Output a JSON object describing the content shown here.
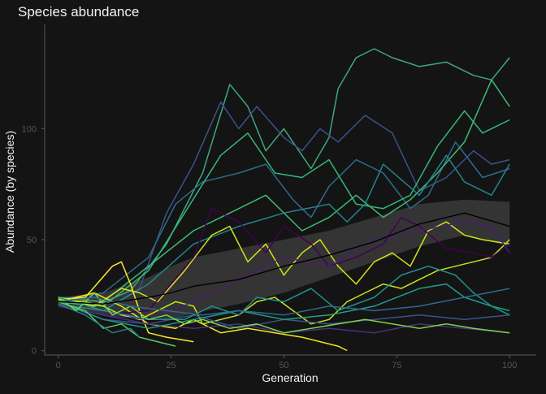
{
  "chart_data": {
    "type": "line",
    "title": "Species abundance",
    "xlabel": "Generation",
    "ylabel": "Abundance (by species)",
    "xlim": [
      -3,
      105
    ],
    "ylim": [
      -2,
      147
    ],
    "x_ticks": [
      0,
      25,
      50,
      75,
      100
    ],
    "x_tick_labels": [
      "0",
      "25",
      "50",
      "75",
      "100"
    ],
    "y_ticks": [
      0,
      50,
      100
    ],
    "y_tick_labels": [
      "0",
      "50",
      "100"
    ],
    "grid": false,
    "legend": "none",
    "colors": {
      "background": "#141414",
      "text": "#f2f2f2",
      "tick_text": "#555555",
      "axis": "#4d4d4d",
      "ribbon": "#3a3a3a",
      "mean_line": "#000000"
    },
    "mean": {
      "x": [
        0,
        10,
        20,
        25,
        30,
        40,
        50,
        60,
        70,
        80,
        90,
        100
      ],
      "y": [
        22,
        21,
        24,
        26,
        29,
        32,
        38,
        43,
        49,
        57,
        62,
        56
      ],
      "lower": [
        20,
        16,
        15,
        14,
        17,
        21,
        26,
        33,
        40,
        47,
        52,
        47
      ],
      "upper": [
        24,
        26,
        33,
        38,
        42,
        46,
        50,
        54,
        60,
        66,
        68,
        67
      ]
    },
    "series": [
      {
        "color": "#3fa77e",
        "x": [
          0,
          8,
          16,
          24,
          32,
          38,
          42,
          46,
          50,
          56,
          60,
          62,
          66,
          70,
          74,
          80,
          86,
          92,
          96,
          100
        ],
        "y": [
          22,
          20,
          27,
          48,
          80,
          120,
          110,
          90,
          100,
          82,
          96,
          118,
          132,
          136,
          132,
          128,
          130,
          124,
          122,
          132
        ]
      },
      {
        "color": "#3b528b",
        "x": [
          0,
          10,
          18,
          24,
          30,
          36,
          40,
          44,
          50,
          54,
          58,
          62,
          68,
          74,
          80,
          86,
          92,
          96,
          100
        ],
        "y": [
          21,
          18,
          28,
          62,
          84,
          112,
          100,
          110,
          96,
          90,
          100,
          94,
          106,
          98,
          72,
          78,
          90,
          84,
          86
        ]
      },
      {
        "color": "#2f6b8e",
        "x": [
          0,
          10,
          20,
          26,
          32,
          40,
          46,
          52,
          56,
          60,
          66,
          72,
          78,
          82,
          88,
          94,
          100
        ],
        "y": [
          23,
          26,
          42,
          66,
          76,
          80,
          84,
          68,
          60,
          74,
          86,
          80,
          64,
          70,
          94,
          78,
          82
        ]
      },
      {
        "color": "#35b779",
        "x": [
          0,
          10,
          20,
          28,
          36,
          42,
          48,
          54,
          60,
          66,
          72,
          78,
          84,
          90,
          94,
          100
        ],
        "y": [
          22,
          20,
          36,
          62,
          88,
          98,
          80,
          78,
          86,
          66,
          64,
          70,
          92,
          108,
          98,
          104
        ]
      },
      {
        "color": "#3cbc75",
        "x": [
          0,
          10,
          20,
          30,
          38,
          46,
          54,
          60,
          66,
          72,
          78,
          84,
          90,
          96,
          100
        ],
        "y": [
          24,
          22,
          38,
          54,
          62,
          70,
          54,
          60,
          70,
          60,
          68,
          80,
          94,
          122,
          110
        ]
      },
      {
        "color": "#25848e",
        "x": [
          0,
          10,
          20,
          30,
          40,
          50,
          60,
          64,
          68,
          72,
          80,
          86,
          90,
          96,
          100
        ],
        "y": [
          21,
          18,
          30,
          48,
          56,
          62,
          66,
          58,
          66,
          84,
          70,
          88,
          76,
          70,
          84
        ]
      },
      {
        "color": "#d2e21b",
        "x": [
          0,
          8,
          14,
          18,
          22,
          28,
          34,
          38,
          42,
          46,
          50,
          54,
          58,
          62,
          66,
          70,
          74,
          78,
          82,
          86,
          90,
          94,
          100
        ],
        "y": [
          24,
          20,
          28,
          26,
          22,
          36,
          52,
          56,
          40,
          48,
          34,
          44,
          50,
          38,
          30,
          40,
          44,
          38,
          54,
          58,
          52,
          50,
          48
        ]
      },
      {
        "color": "#fde725",
        "x": [
          0,
          6,
          12,
          14,
          16,
          18,
          20,
          24,
          30
        ],
        "y": [
          23,
          24,
          38,
          40,
          30,
          18,
          8,
          6,
          4
        ]
      },
      {
        "color": "#f0e51c",
        "x": [
          0,
          8,
          14,
          20,
          26,
          30,
          36,
          42,
          48,
          54,
          58,
          62,
          64
        ],
        "y": [
          22,
          26,
          20,
          12,
          10,
          14,
          8,
          10,
          8,
          6,
          4,
          2,
          0
        ]
      },
      {
        "color": "#c9e020",
        "x": [
          0,
          6,
          10,
          14,
          18,
          22,
          26,
          30,
          32,
          36,
          40,
          44,
          48,
          52,
          56,
          60,
          64,
          68,
          72,
          76,
          80,
          84,
          88,
          92,
          96,
          100
        ],
        "y": [
          23,
          22,
          20,
          16,
          14,
          18,
          22,
          20,
          12,
          14,
          16,
          22,
          24,
          18,
          12,
          14,
          22,
          26,
          30,
          28,
          32,
          36,
          38,
          40,
          42,
          50
        ]
      },
      {
        "color": "#440154",
        "x": [
          0,
          10,
          20,
          30,
          34,
          40,
          46,
          50,
          56,
          60,
          66,
          72,
          76,
          80,
          86,
          92,
          96,
          100
        ],
        "y": [
          20,
          16,
          18,
          42,
          64,
          58,
          44,
          56,
          48,
          38,
          42,
          48,
          60,
          56,
          46,
          44,
          42,
          48
        ]
      },
      {
        "color": "#481f70",
        "x": [
          0,
          10,
          20,
          30,
          40,
          50,
          60,
          70,
          80,
          90,
          96,
          100
        ],
        "y": [
          21,
          16,
          14,
          22,
          32,
          42,
          38,
          50,
          54,
          58,
          56,
          44
        ]
      },
      {
        "color": "#3b528b",
        "x": [
          0,
          10,
          20,
          30,
          40,
          50,
          60,
          70,
          80,
          90,
          100
        ],
        "y": [
          22,
          14,
          12,
          16,
          10,
          14,
          12,
          14,
          16,
          14,
          16
        ]
      },
      {
        "color": "#46327e",
        "x": [
          0,
          10,
          20,
          30,
          40,
          50,
          60,
          70,
          80,
          90,
          100
        ],
        "y": [
          20,
          16,
          12,
          10,
          12,
          8,
          10,
          8,
          12,
          10,
          8
        ]
      },
      {
        "color": "#1f9e89",
        "x": [
          0,
          10,
          20,
          30,
          40,
          50,
          60,
          70,
          80,
          86,
          90,
          96,
          100
        ],
        "y": [
          22,
          14,
          10,
          14,
          18,
          14,
          16,
          20,
          28,
          30,
          24,
          20,
          18
        ]
      },
      {
        "color": "#21918c",
        "x": [
          0,
          10,
          20,
          28,
          34,
          40,
          44,
          50,
          56,
          62,
          70,
          76,
          82,
          88,
          92,
          96,
          100
        ],
        "y": [
          24,
          18,
          14,
          14,
          20,
          16,
          24,
          22,
          28,
          18,
          24,
          34,
          38,
          34,
          26,
          20,
          16
        ]
      },
      {
        "color": "#5ec962",
        "x": [
          0,
          6,
          10,
          14,
          18,
          22,
          26
        ],
        "y": [
          22,
          18,
          10,
          12,
          6,
          4,
          2
        ]
      },
      {
        "color": "#7ad151",
        "x": [
          0,
          4,
          8,
          12,
          16,
          20,
          24,
          28,
          32,
          38,
          44,
          50,
          56,
          62,
          68,
          74,
          80,
          86,
          92,
          100
        ],
        "y": [
          24,
          18,
          26,
          16,
          20,
          14,
          16,
          12,
          14,
          10,
          12,
          8,
          10,
          12,
          14,
          12,
          10,
          12,
          10,
          8
        ]
      },
      {
        "color": "#26828e",
        "x": [
          0,
          6,
          12,
          16,
          18
        ],
        "y": [
          21,
          16,
          8,
          10,
          6
        ]
      },
      {
        "color": "#31688e",
        "x": [
          0,
          8,
          16,
          24,
          32,
          40,
          50,
          60,
          70,
          80,
          90,
          100
        ],
        "y": [
          22,
          24,
          20,
          18,
          16,
          18,
          16,
          20,
          18,
          20,
          24,
          28
        ]
      }
    ]
  }
}
